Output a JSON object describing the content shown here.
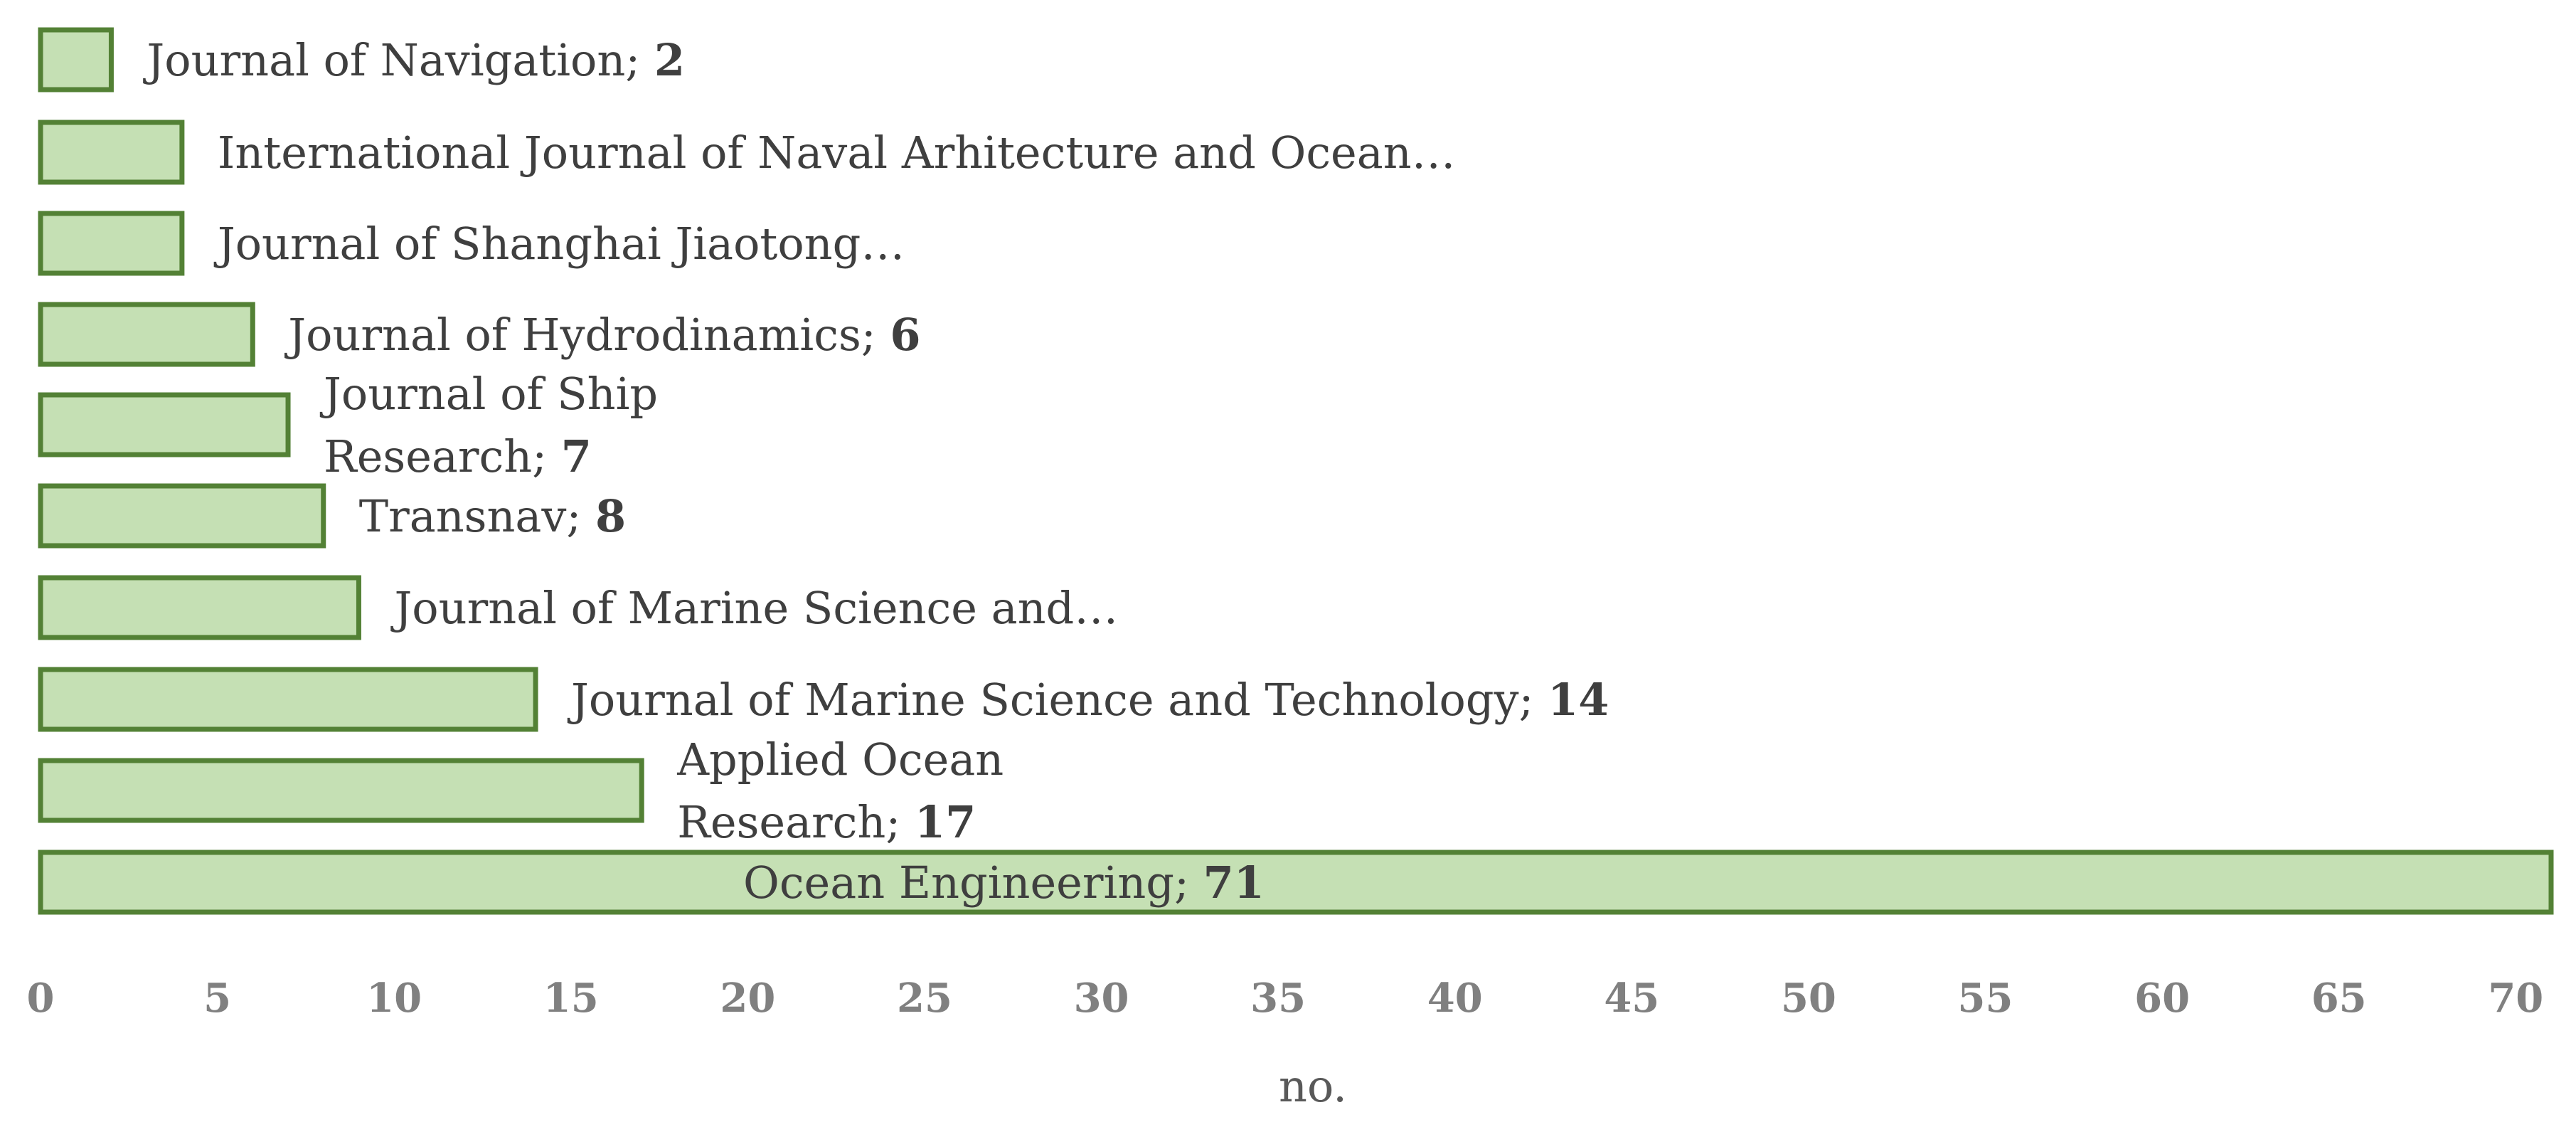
{
  "chart_data": {
    "type": "bar",
    "orientation": "horizontal",
    "title": "",
    "xlabel": "no.",
    "ylabel": "",
    "xlim": [
      0,
      71
    ],
    "x_ticks": [
      0,
      5,
      10,
      15,
      20,
      25,
      30,
      35,
      40,
      45,
      50,
      55,
      60,
      65,
      70
    ],
    "grid": false,
    "legend": "none",
    "colors": {
      "bar_fill": "#c5e0b4",
      "bar_stroke": "#538135",
      "tick_text": "#808080"
    },
    "bars": [
      {
        "category": "Journal of Navigation",
        "value": 2,
        "label_lines": [
          {
            "text": "Journal of Navigation; ",
            "value_text": "2"
          }
        ]
      },
      {
        "category": "International Journal of Naval Arhitecture and Ocean…",
        "value": 4,
        "label_lines": [
          {
            "text": "International Journal of Naval Arhitecture and Ocean…",
            "value_text": ""
          }
        ]
      },
      {
        "category": "Journal of Shanghai Jiaotong…",
        "value": 4,
        "label_lines": [
          {
            "text": "Journal of Shanghai Jiaotong…",
            "value_text": ""
          }
        ]
      },
      {
        "category": "Journal of Hydrodinamics",
        "value": 6,
        "label_lines": [
          {
            "text": "Journal of Hydrodinamics; ",
            "value_text": "6"
          }
        ]
      },
      {
        "category": "Journal of Ship Research",
        "value": 7,
        "label_lines": [
          {
            "text": "Journal of Ship",
            "value_text": ""
          },
          {
            "text": "Research; ",
            "value_text": "7"
          }
        ]
      },
      {
        "category": "Transnav",
        "value": 8,
        "label_lines": [
          {
            "text": "Transnav; ",
            "value_text": "8"
          }
        ]
      },
      {
        "category": "Journal of Marine Science and…",
        "value": 9,
        "label_lines": [
          {
            "text": "Journal of Marine Science and…",
            "value_text": ""
          }
        ]
      },
      {
        "category": "Journal of Marine Science and Technology",
        "value": 14,
        "label_lines": [
          {
            "text": "Journal of Marine Science and Technology; ",
            "value_text": "14"
          }
        ]
      },
      {
        "category": "Applied Ocean Research",
        "value": 17,
        "label_lines": [
          {
            "text": "Applied Ocean",
            "value_text": ""
          },
          {
            "text": "Research; ",
            "value_text": "17"
          }
        ]
      },
      {
        "category": "Ocean Engineering",
        "value": 71,
        "label_lines": [
          {
            "text": "Ocean Engineering; ",
            "value_text": "71"
          }
        ]
      }
    ]
  }
}
